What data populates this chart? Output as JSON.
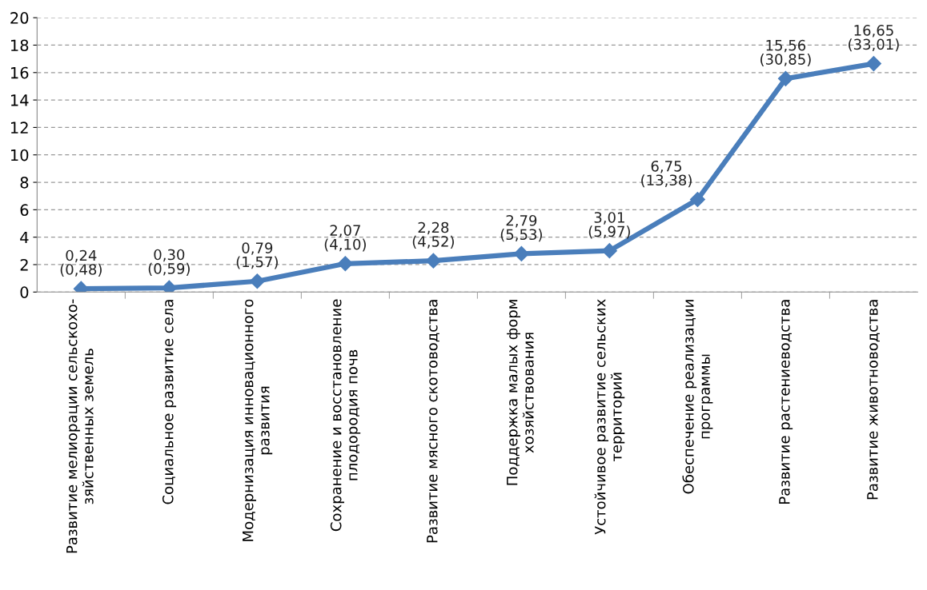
{
  "chart_data": {
    "type": "line",
    "categories": [
      "Развитие мелиорации сельскохо-\nзяйственных земель",
      "Социальное развитие села",
      "Модернизация инновационного\nразвития",
      "Сохранение и восстановление\nплодородия почв",
      "Развитие мясного скотоводства",
      "Поддержка малых форм\nхозяйствования",
      "Устойчивое развитие сельских\nтерриторий",
      "Обеспечение реализации\nпрограммы",
      "Развитие растениеводства",
      "Развитие животноводства"
    ],
    "series": [
      {
        "color": "#4a7ebb",
        "values": [
          0.24,
          0.3,
          0.79,
          2.07,
          2.28,
          2.79,
          3.01,
          6.75,
          15.56,
          16.65
        ],
        "value_labels": [
          "0,24\n(0,48)",
          "0,30\n(0,59)",
          "0,79\n(1,57)",
          "2,07\n(4,10)",
          "2,28\n(4,52)",
          "2,79\n(5,53)",
          "3,01\n(5,97)",
          "6,75\n(13,38)",
          "15,56\n(30,85)",
          "16,65\n(33,01)"
        ]
      }
    ],
    "ylim": [
      0,
      20
    ],
    "yticks": [
      0,
      2,
      4,
      6,
      8,
      10,
      12,
      14,
      16,
      18,
      20
    ],
    "grid": "y",
    "marker": "diamond",
    "line_style": "solid",
    "legend": false
  }
}
